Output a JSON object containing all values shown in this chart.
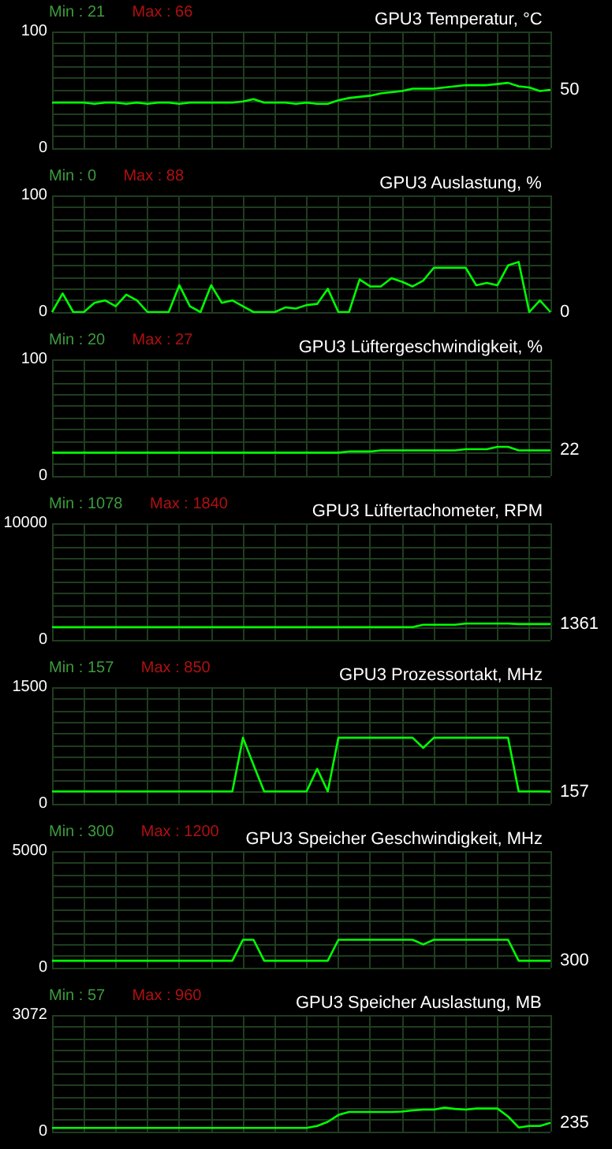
{
  "chart_data": [
    {
      "type": "line",
      "title": "GPU3 Temperatur, °C",
      "annotations": [
        "Min : 21",
        "Max : 66"
      ],
      "categories": [
        null,
        null,
        null,
        null,
        null,
        null,
        null,
        null,
        null,
        null,
        null,
        null,
        null,
        null,
        null,
        null,
        null,
        null,
        null,
        null,
        null,
        null,
        null,
        null,
        null,
        null,
        null,
        null,
        null,
        null,
        null,
        null,
        null,
        null,
        null,
        null,
        null,
        null,
        null,
        null,
        null,
        null,
        null,
        null,
        null,
        null,
        null,
        null
      ],
      "color": "#00ff00",
      "values": [
        39,
        39,
        39,
        39,
        38,
        39,
        39,
        38,
        39,
        38,
        39,
        39,
        38,
        39,
        39,
        39,
        39,
        39,
        40,
        42,
        39,
        39,
        39,
        38,
        39,
        38,
        38,
        41,
        43,
        44,
        45,
        47,
        48,
        49,
        51,
        51,
        51,
        52,
        53,
        54,
        54,
        54,
        55,
        56,
        53,
        52,
        49,
        50
      ],
      "value_labels": [
        null,
        null,
        null,
        null,
        null,
        null,
        null,
        null,
        null,
        null,
        null,
        null,
        null,
        null,
        null,
        null,
        null,
        null,
        null,
        null,
        null,
        null,
        null,
        null,
        null,
        null,
        null,
        null,
        null,
        null,
        null,
        null,
        null,
        null,
        null,
        null,
        null,
        null,
        null,
        null,
        null,
        null,
        null,
        null,
        null,
        null,
        null,
        "50"
      ],
      "ylim": [
        0,
        100
      ],
      "yticks": [
        0,
        {
          "value": 10,
          "label": null
        },
        {
          "value": 20,
          "label": null
        },
        {
          "value": 30,
          "label": null
        },
        {
          "value": 40,
          "label": null
        },
        {
          "value": 50,
          "label": null
        },
        {
          "value": 60,
          "label": null
        },
        {
          "value": 70,
          "label": null
        },
        {
          "value": 80,
          "label": null
        },
        {
          "value": 90,
          "label": null
        },
        100
      ],
      "grid": true,
      "tick_labels": "y"
    },
    {
      "type": "line",
      "title": "GPU3 Auslastung, %",
      "annotations": [
        "Min : 0",
        "Max : 88"
      ],
      "categories": [
        null,
        null,
        null,
        null,
        null,
        null,
        null,
        null,
        null,
        null,
        null,
        null,
        null,
        null,
        null,
        null,
        null,
        null,
        null,
        null,
        null,
        null,
        null,
        null,
        null,
        null,
        null,
        null,
        null,
        null,
        null,
        null,
        null,
        null,
        null,
        null,
        null,
        null,
        null,
        null,
        null,
        null,
        null,
        null,
        null,
        null,
        null,
        null
      ],
      "color": "#00ff00",
      "values": [
        0,
        16,
        0,
        0,
        8,
        10,
        5,
        15,
        10,
        0,
        0,
        0,
        23,
        5,
        0,
        23,
        8,
        10,
        5,
        0,
        0,
        0,
        4,
        3,
        6,
        7,
        20,
        0,
        0,
        28,
        22,
        22,
        29,
        26,
        22,
        27,
        38,
        38,
        38,
        38,
        23,
        25,
        23,
        40,
        43,
        0,
        10,
        0
      ],
      "value_labels": [
        null,
        null,
        null,
        null,
        null,
        null,
        null,
        null,
        null,
        null,
        null,
        null,
        null,
        null,
        null,
        null,
        null,
        null,
        null,
        null,
        null,
        null,
        null,
        null,
        null,
        null,
        null,
        null,
        null,
        null,
        null,
        null,
        null,
        null,
        null,
        null,
        null,
        null,
        null,
        null,
        null,
        null,
        null,
        null,
        null,
        null,
        null,
        "0"
      ],
      "ylim": [
        0,
        100
      ],
      "yticks": [
        0,
        {
          "value": 10,
          "label": null
        },
        {
          "value": 20,
          "label": null
        },
        {
          "value": 30,
          "label": null
        },
        {
          "value": 40,
          "label": null
        },
        {
          "value": 50,
          "label": null
        },
        {
          "value": 60,
          "label": null
        },
        {
          "value": 70,
          "label": null
        },
        {
          "value": 80,
          "label": null
        },
        {
          "value": 90,
          "label": null
        },
        100
      ],
      "grid": true,
      "tick_labels": "y"
    },
    {
      "type": "line",
      "title": "GPU3 Lüftergeschwindigkeit, %",
      "annotations": [
        "Min : 20",
        "Max : 27"
      ],
      "categories": [
        null,
        null,
        null,
        null,
        null,
        null,
        null,
        null,
        null,
        null,
        null,
        null,
        null,
        null,
        null,
        null,
        null,
        null,
        null,
        null,
        null,
        null,
        null,
        null,
        null,
        null,
        null,
        null,
        null,
        null,
        null,
        null,
        null,
        null,
        null,
        null,
        null,
        null,
        null,
        null,
        null,
        null,
        null,
        null,
        null,
        null,
        null,
        null
      ],
      "color": "#00ff00",
      "values": [
        20,
        20,
        20,
        20,
        20,
        20,
        20,
        20,
        20,
        20,
        20,
        20,
        20,
        20,
        20,
        20,
        20,
        20,
        20,
        20,
        20,
        20,
        20,
        20,
        20,
        20,
        20,
        20,
        21,
        21,
        21,
        22,
        22,
        22,
        22,
        22,
        22,
        22,
        22,
        23,
        23,
        23,
        25,
        25,
        22,
        22,
        22,
        22
      ],
      "value_labels": [
        null,
        null,
        null,
        null,
        null,
        null,
        null,
        null,
        null,
        null,
        null,
        null,
        null,
        null,
        null,
        null,
        null,
        null,
        null,
        null,
        null,
        null,
        null,
        null,
        null,
        null,
        null,
        null,
        null,
        null,
        null,
        null,
        null,
        null,
        null,
        null,
        null,
        null,
        null,
        null,
        null,
        null,
        null,
        null,
        null,
        null,
        null,
        "22"
      ],
      "ylim": [
        0,
        100
      ],
      "yticks": [
        0,
        {
          "value": 10,
          "label": null
        },
        {
          "value": 20,
          "label": null
        },
        {
          "value": 30,
          "label": null
        },
        {
          "value": 40,
          "label": null
        },
        {
          "value": 50,
          "label": null
        },
        {
          "value": 60,
          "label": null
        },
        {
          "value": 70,
          "label": null
        },
        {
          "value": 80,
          "label": null
        },
        {
          "value": 90,
          "label": null
        },
        100
      ],
      "grid": true,
      "tick_labels": "y"
    },
    {
      "type": "line",
      "title": "GPU3 Lüftertachometer, RPM",
      "annotations": [
        "Min : 1078",
        "Max : 1840"
      ],
      "categories": [
        null,
        null,
        null,
        null,
        null,
        null,
        null,
        null,
        null,
        null,
        null,
        null,
        null,
        null,
        null,
        null,
        null,
        null,
        null,
        null,
        null,
        null,
        null,
        null,
        null,
        null,
        null,
        null,
        null,
        null,
        null,
        null,
        null,
        null,
        null,
        null,
        null,
        null,
        null,
        null,
        null,
        null,
        null,
        null,
        null,
        null,
        null,
        null
      ],
      "color": "#00ff00",
      "values": [
        1100,
        1100,
        1100,
        1100,
        1100,
        1100,
        1100,
        1100,
        1100,
        1100,
        1100,
        1100,
        1100,
        1100,
        1100,
        1100,
        1100,
        1100,
        1100,
        1100,
        1100,
        1100,
        1100,
        1100,
        1100,
        1100,
        1100,
        1100,
        1100,
        1100,
        1100,
        1100,
        1100,
        1100,
        1100,
        1300,
        1300,
        1300,
        1300,
        1400,
        1400,
        1400,
        1400,
        1400,
        1361,
        1361,
        1361,
        1361
      ],
      "value_labels": [
        null,
        null,
        null,
        null,
        null,
        null,
        null,
        null,
        null,
        null,
        null,
        null,
        null,
        null,
        null,
        null,
        null,
        null,
        null,
        null,
        null,
        null,
        null,
        null,
        null,
        null,
        null,
        null,
        null,
        null,
        null,
        null,
        null,
        null,
        null,
        null,
        null,
        null,
        null,
        null,
        null,
        null,
        null,
        null,
        null,
        null,
        null,
        "1361"
      ],
      "ylim": [
        0,
        10000
      ],
      "yticks": [
        0,
        {
          "value": 1000,
          "label": null
        },
        {
          "value": 2000,
          "label": null
        },
        {
          "value": 3000,
          "label": null
        },
        {
          "value": 4000,
          "label": null
        },
        {
          "value": 5000,
          "label": null
        },
        {
          "value": 6000,
          "label": null
        },
        {
          "value": 7000,
          "label": null
        },
        {
          "value": 8000,
          "label": null
        },
        {
          "value": 9000,
          "label": null
        },
        10000
      ],
      "grid": true,
      "tick_labels": "y"
    },
    {
      "type": "line",
      "title": "GPU3 Prozessortakt, MHz",
      "annotations": [
        "Min : 157",
        "Max : 850"
      ],
      "categories": [
        null,
        null,
        null,
        null,
        null,
        null,
        null,
        null,
        null,
        null,
        null,
        null,
        null,
        null,
        null,
        null,
        null,
        null,
        null,
        null,
        null,
        null,
        null,
        null,
        null,
        null,
        null,
        null,
        null,
        null,
        null,
        null,
        null,
        null,
        null,
        null,
        null,
        null,
        null,
        null,
        null,
        null,
        null,
        null,
        null,
        null,
        null,
        null
      ],
      "color": "#00ff00",
      "values": [
        160,
        160,
        160,
        160,
        160,
        160,
        160,
        160,
        160,
        160,
        160,
        160,
        160,
        160,
        160,
        160,
        160,
        160,
        850,
        500,
        160,
        160,
        160,
        160,
        160,
        450,
        160,
        850,
        850,
        850,
        850,
        850,
        850,
        850,
        850,
        720,
        850,
        850,
        850,
        850,
        850,
        850,
        850,
        850,
        160,
        160,
        160,
        157
      ],
      "value_labels": [
        null,
        null,
        null,
        null,
        null,
        null,
        null,
        null,
        null,
        null,
        null,
        null,
        null,
        null,
        null,
        null,
        null,
        null,
        null,
        null,
        null,
        null,
        null,
        null,
        null,
        null,
        null,
        null,
        null,
        null,
        null,
        null,
        null,
        null,
        null,
        null,
        null,
        null,
        null,
        null,
        null,
        null,
        null,
        null,
        null,
        null,
        null,
        "157"
      ],
      "ylim": [
        0,
        1500
      ],
      "yticks": [
        0,
        {
          "value": 150,
          "label": null
        },
        {
          "value": 300,
          "label": null
        },
        {
          "value": 450,
          "label": null
        },
        {
          "value": 600,
          "label": null
        },
        {
          "value": 750,
          "label": null
        },
        {
          "value": 900,
          "label": null
        },
        {
          "value": 1050,
          "label": null
        },
        {
          "value": 1200,
          "label": null
        },
        {
          "value": 1350,
          "label": null
        },
        1500
      ],
      "grid": true,
      "tick_labels": "y"
    },
    {
      "type": "line",
      "title": "GPU3 Speicher Geschwindigkeit, MHz",
      "annotations": [
        "Min : 300",
        "Max : 1200"
      ],
      "categories": [
        null,
        null,
        null,
        null,
        null,
        null,
        null,
        null,
        null,
        null,
        null,
        null,
        null,
        null,
        null,
        null,
        null,
        null,
        null,
        null,
        null,
        null,
        null,
        null,
        null,
        null,
        null,
        null,
        null,
        null,
        null,
        null,
        null,
        null,
        null,
        null,
        null,
        null,
        null,
        null,
        null,
        null,
        null,
        null,
        null,
        null,
        null,
        null
      ],
      "color": "#00ff00",
      "values": [
        300,
        300,
        300,
        300,
        300,
        300,
        300,
        300,
        300,
        300,
        300,
        300,
        300,
        300,
        300,
        300,
        300,
        300,
        1200,
        1200,
        300,
        300,
        300,
        300,
        300,
        300,
        300,
        1200,
        1200,
        1200,
        1200,
        1200,
        1200,
        1200,
        1200,
        1000,
        1200,
        1200,
        1200,
        1200,
        1200,
        1200,
        1200,
        1200,
        300,
        300,
        300,
        300
      ],
      "value_labels": [
        null,
        null,
        null,
        null,
        null,
        null,
        null,
        null,
        null,
        null,
        null,
        null,
        null,
        null,
        null,
        null,
        null,
        null,
        null,
        null,
        null,
        null,
        null,
        null,
        null,
        null,
        null,
        null,
        null,
        null,
        null,
        null,
        null,
        null,
        null,
        null,
        null,
        null,
        null,
        null,
        null,
        null,
        null,
        null,
        null,
        null,
        null,
        "300"
      ],
      "ylim": [
        0,
        5000
      ],
      "yticks": [
        0,
        {
          "value": 500,
          "label": null
        },
        {
          "value": 1000,
          "label": null
        },
        {
          "value": 1500,
          "label": null
        },
        {
          "value": 2000,
          "label": null
        },
        {
          "value": 2500,
          "label": null
        },
        {
          "value": 3000,
          "label": null
        },
        {
          "value": 3500,
          "label": null
        },
        {
          "value": 4000,
          "label": null
        },
        {
          "value": 4500,
          "label": null
        },
        5000
      ],
      "grid": true,
      "tick_labels": "y"
    },
    {
      "type": "line",
      "title": "GPU3 Speicher Auslastung, MB",
      "annotations": [
        "Min : 57",
        "Max : 960"
      ],
      "categories": [
        null,
        null,
        null,
        null,
        null,
        null,
        null,
        null,
        null,
        null,
        null,
        null,
        null,
        null,
        null,
        null,
        null,
        null,
        null,
        null,
        null,
        null,
        null,
        null,
        null,
        null,
        null,
        null,
        null,
        null,
        null,
        null,
        null,
        null,
        null,
        null,
        null,
        null,
        null,
        null,
        null,
        null,
        null,
        null,
        null,
        null,
        null,
        null
      ],
      "color": "#00ff00",
      "values": [
        100,
        100,
        100,
        100,
        100,
        100,
        100,
        100,
        100,
        100,
        100,
        100,
        100,
        100,
        100,
        100,
        100,
        100,
        100,
        100,
        100,
        100,
        100,
        100,
        100,
        150,
        260,
        440,
        520,
        520,
        520,
        520,
        520,
        530,
        560,
        580,
        580,
        630,
        600,
        580,
        610,
        610,
        610,
        400,
        110,
        150,
        150,
        235
      ],
      "value_labels": [
        null,
        null,
        null,
        null,
        null,
        null,
        null,
        null,
        null,
        null,
        null,
        null,
        null,
        null,
        null,
        null,
        null,
        null,
        null,
        null,
        null,
        null,
        null,
        null,
        null,
        null,
        null,
        null,
        null,
        null,
        null,
        null,
        null,
        null,
        null,
        null,
        null,
        null,
        null,
        null,
        null,
        null,
        null,
        null,
        null,
        null,
        null,
        "235"
      ],
      "ylim": [
        0,
        3072
      ],
      "yticks": [
        0,
        {
          "value": 307.2,
          "label": null
        },
        {
          "value": 614.4,
          "label": null
        },
        {
          "value": 921.6,
          "label": null
        },
        {
          "value": 1228.8,
          "label": null
        },
        {
          "value": 1536,
          "label": null
        },
        {
          "value": 1843.2,
          "label": null
        },
        {
          "value": 2150.4,
          "label": null
        },
        {
          "value": 2457.6,
          "label": null
        },
        {
          "value": 2764.8,
          "label": null
        },
        3072
      ],
      "grid": true,
      "tick_labels": "y"
    }
  ]
}
